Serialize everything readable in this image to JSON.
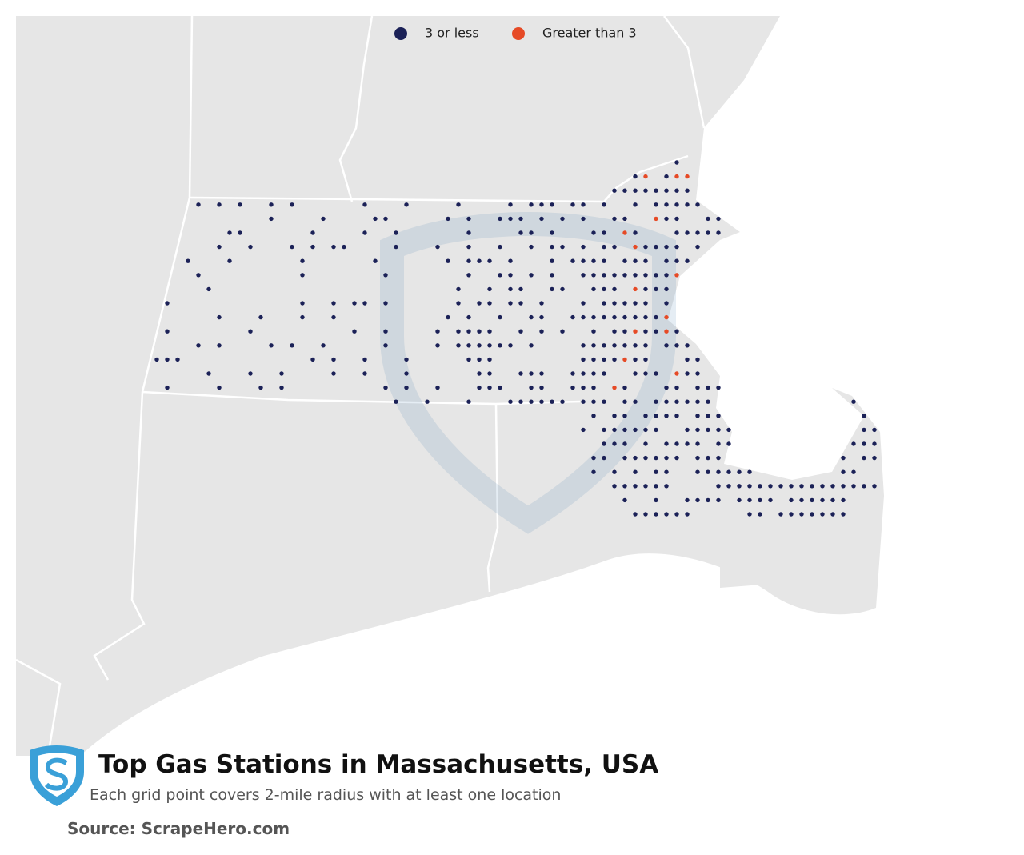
{
  "legend": [
    {
      "label": "3 or less",
      "color": "#1b2157"
    },
    {
      "label": "Greater than 3",
      "color": "#e64a26"
    }
  ],
  "title": "Top Gas Stations in Massachusetts, USA",
  "subtitle": "Each grid point covers 2-mile radius with at least one location",
  "source": "Source: ScrapeHero.com"
}
